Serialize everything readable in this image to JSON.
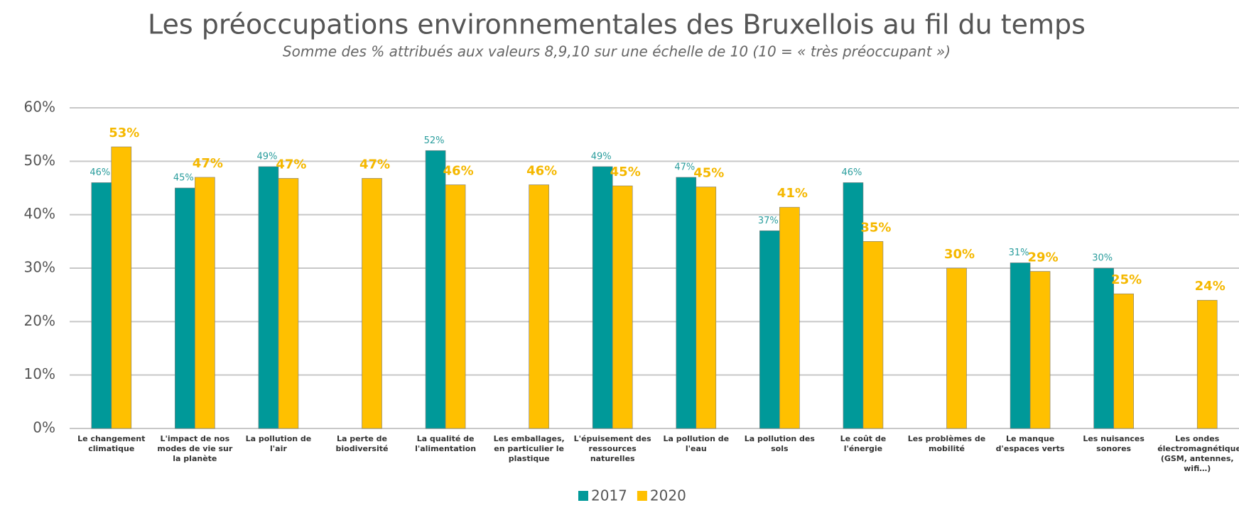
{
  "chart_data": {
    "type": "bar",
    "title": "Les préoccupations environnementales des Bruxellois au fil du temps",
    "subtitle": "Somme des % attribués aux valeurs 8,9,10 sur une échelle de 10 (10 = « très préoccupant »)",
    "categories": [
      "Le changement climatique",
      "L'impact de nos modes de vie sur la planète",
      "La pollution de l'air",
      "La perte de biodiversité",
      "La qualité de l'alimentation",
      "Les emballages, en particulier le plastique",
      "L'épuisement des ressources naturelles",
      "La pollution de l'eau",
      "La pollution des sols",
      "Le coût de l'énergie",
      "Les problèmes de mobilité",
      "Le manque d'espaces verts",
      "Les nuisances sonores",
      "Les ondes électromagnétiques (GSM, antennes, wifi…)"
    ],
    "series": [
      {
        "name": "2017",
        "color": "#009999",
        "values": [
          46,
          45,
          49,
          null,
          52,
          null,
          49,
          47,
          37,
          46,
          null,
          31,
          30,
          null
        ],
        "value_labels": [
          "46%",
          "45%",
          "49%",
          null,
          "52%",
          null,
          "49%",
          "47%",
          "37%",
          "46%",
          null,
          "31%",
          "30%",
          null
        ]
      },
      {
        "name": "2020",
        "color": "#ffc000",
        "values": [
          52.7,
          47,
          46.8,
          46.8,
          45.6,
          45.6,
          45.4,
          45.2,
          41.4,
          35,
          30,
          29.4,
          25.2,
          24
        ],
        "value_labels": [
          "53%",
          "47%",
          "47%",
          "47%",
          "46%",
          "46%",
          "45%",
          "45%",
          "41%",
          "35%",
          "30%",
          "29%",
          "25%",
          "24%"
        ]
      }
    ],
    "ylim": [
      0,
      60
    ],
    "yticks": [
      {
        "value": 0,
        "label": "0%"
      },
      {
        "value": 10,
        "label": "10%"
      },
      {
        "value": 20,
        "label": "20%"
      },
      {
        "value": 30,
        "label": "30%"
      },
      {
        "value": 40,
        "label": "40%"
      },
      {
        "value": 50,
        "label": "50%"
      },
      {
        "value": 60,
        "label": "60%"
      }
    ],
    "grid": true
  }
}
